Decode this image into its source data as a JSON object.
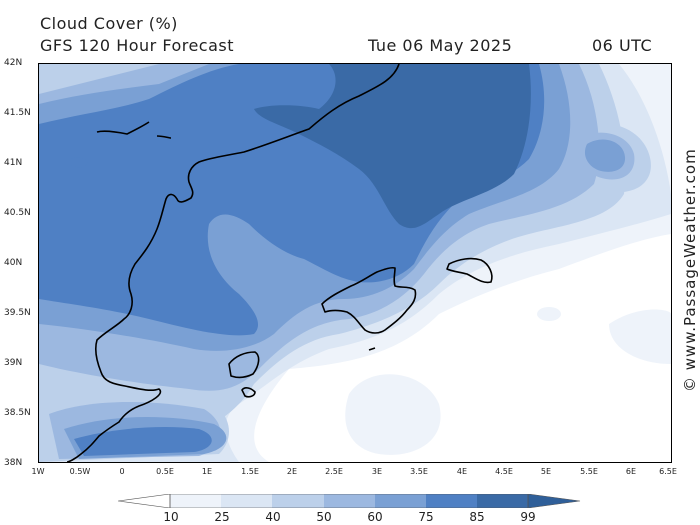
{
  "header": {
    "title_line1": "Cloud Cover (%)",
    "title_line2": "GFS 120 Hour Forecast",
    "date": "Tue 06 May 2025",
    "time": "06 UTC"
  },
  "map": {
    "latitudes": [
      "42N",
      "41.5N",
      "41N",
      "40.5N",
      "40N",
      "39.5N",
      "39N",
      "38.5N",
      "38N"
    ],
    "longitudes": [
      "1W",
      "0.5W",
      "0",
      "0.5E",
      "1E",
      "1.5E",
      "2E",
      "2.5E",
      "3E",
      "3.5E",
      "4E",
      "4.5E",
      "5E",
      "5.5E",
      "6E",
      "6.5E"
    ],
    "lat_range": [
      38,
      42
    ],
    "lon_range": [
      -1,
      6.5
    ],
    "colors": {
      "very_light": "#eef3fa",
      "light": "#dbe6f4",
      "light_mid": "#bcd0ea",
      "mid": "#9cb8e0",
      "mid_dark": "#7aa0d4",
      "dark": "#4f80c4",
      "darkest": "#3a6aa6",
      "coast": "#000000"
    }
  },
  "legend": {
    "thresholds": [
      "10",
      "25",
      "40",
      "50",
      "60",
      "75",
      "85",
      "99"
    ],
    "colors": [
      "#ffffff",
      "#eef3fa",
      "#dbe6f4",
      "#bcd0ea",
      "#9cb8e0",
      "#7aa0d4",
      "#4f80c4",
      "#3a6aa6",
      "#2f5f99"
    ]
  },
  "watermark": "© www.PassageWeather.com"
}
